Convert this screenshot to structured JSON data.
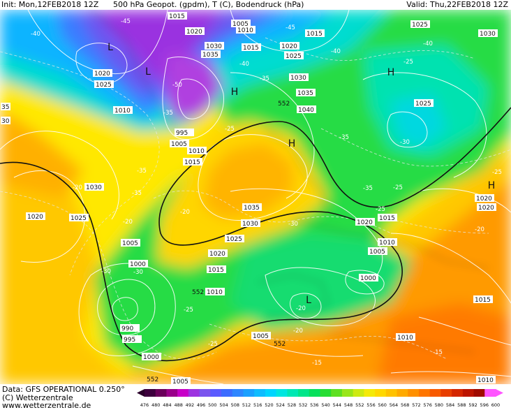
{
  "header": {
    "init": "Init: Mon,12FEB2018 12Z",
    "title": "500 hPa Geopot. (gpdm), T (C), Bodendruck (hPa)",
    "valid": "Valid: Thu,22FEB2018 12Z"
  },
  "footer": {
    "data": "Data: GFS OPERATIONAL 0.250°",
    "copyright": "(C) Wetterzentrale",
    "url": "www.wetterzentrale.de"
  },
  "colorbar": {
    "ticks": [
      "476",
      "480",
      "484",
      "488",
      "492",
      "496",
      "500",
      "504",
      "508",
      "512",
      "516",
      "520",
      "524",
      "528",
      "532",
      "536",
      "540",
      "544",
      "548",
      "552",
      "556",
      "560",
      "564",
      "568",
      "572",
      "576",
      "580",
      "584",
      "588",
      "592",
      "596",
      "600"
    ],
    "colors": [
      "#3d003d",
      "#6a005a",
      "#9a008a",
      "#c800c8",
      "#9d33e0",
      "#7b55ee",
      "#5b5bff",
      "#3c6cff",
      "#2e86ff",
      "#1aa0ff",
      "#0ebcff",
      "#00d5ff",
      "#00e6e0",
      "#00e8b4",
      "#00e68a",
      "#06e05c",
      "#26dd34",
      "#5ee022",
      "#99e61a",
      "#cdea12",
      "#f4ea08",
      "#ffd800",
      "#ffc200",
      "#ffaa00",
      "#ff9000",
      "#ff7600",
      "#f85a00",
      "#e83e00",
      "#d42600",
      "#bc1400",
      "#a00a00",
      "#ff55ff"
    ]
  },
  "pressure_systems": [
    {
      "symbol": "L",
      "center": "Greenland"
    },
    {
      "symbol": "L",
      "center": "Davis Strait"
    },
    {
      "symbol": "H",
      "center": "Greenland east"
    },
    {
      "symbol": "H",
      "center": "Scandinavia"
    },
    {
      "symbol": "H",
      "center": "Barents Sea"
    },
    {
      "symbol": "H",
      "center": "Western Russia"
    },
    {
      "symbol": "L",
      "center": "Western Mediterranean"
    }
  ],
  "isobar_labels": [
    "1015",
    "1020",
    "1005",
    "1010",
    "1030",
    "1035",
    "1015",
    "1020",
    "1025",
    "1015",
    "1025",
    "1030",
    "1020",
    "1025",
    "1010",
    "1035",
    "1040",
    "1025",
    "1030",
    "1025",
    "1020",
    "995",
    "1005",
    "1010",
    "1015",
    "1030",
    "1020",
    "1025",
    "1035",
    "1030",
    "1025",
    "1020",
    "1015",
    "1020",
    "1015",
    "1010",
    "1005",
    "1000",
    "1005",
    "1000",
    "990",
    "995",
    "1010",
    "1005",
    "1000",
    "1015",
    "1010",
    "1020",
    "1005",
    "1005",
    "1010"
  ],
  "temperature_labels": [
    "-40",
    "-45",
    "-40",
    "-40",
    "-45",
    "-50",
    "-40",
    "-35",
    "-35",
    "-25",
    "-30",
    "-30",
    "-35",
    "-25",
    "-35",
    "-35",
    "-25",
    "-20",
    "-20",
    "-25",
    "-35",
    "-30",
    "-20",
    "-25",
    "-20",
    "-30",
    "-30",
    "-25",
    "-20",
    "-20",
    "-25",
    "-25",
    "-20",
    "-20",
    "-15",
    "-20",
    "-15",
    "-20",
    "-20"
  ],
  "geopotential_labels": [
    "552",
    "552",
    "552",
    "552"
  ]
}
